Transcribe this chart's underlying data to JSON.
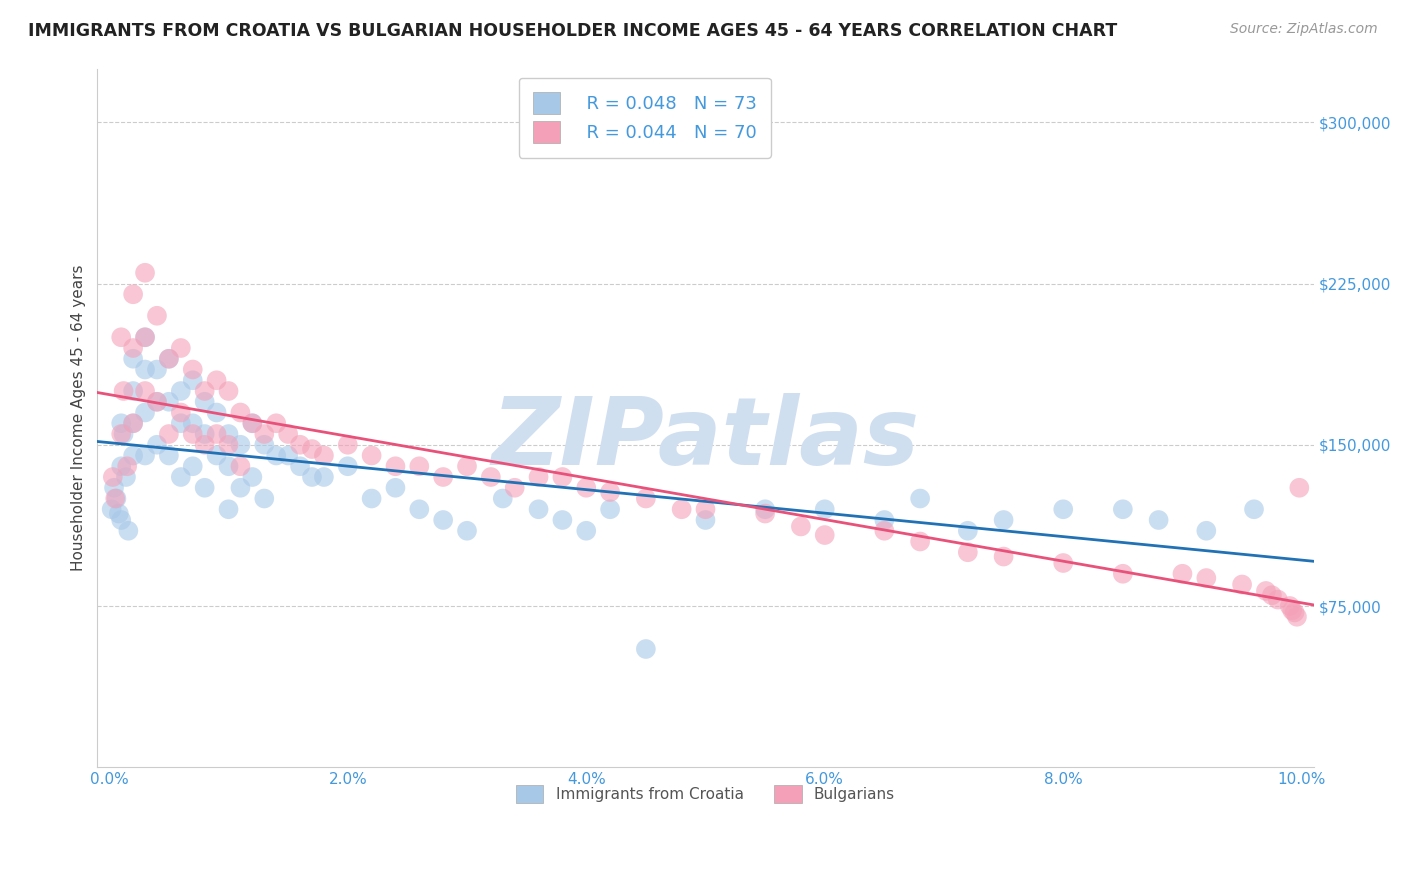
{
  "title": "IMMIGRANTS FROM CROATIA VS BULGARIAN HOUSEHOLDER INCOME AGES 45 - 64 YEARS CORRELATION CHART",
  "source": "Source: ZipAtlas.com",
  "ylabel": "Householder Income Ages 45 - 64 years",
  "xlim": [
    -0.001,
    0.101
  ],
  "ylim": [
    0,
    325000
  ],
  "yticks": [
    75000,
    150000,
    225000,
    300000
  ],
  "ytick_labels": [
    "$75,000",
    "$150,000",
    "$225,000",
    "$300,000"
  ],
  "xticks": [
    0.0,
    0.02,
    0.04,
    0.06,
    0.08,
    0.1
  ],
  "xtick_labels": [
    "0.0%",
    "2.0%",
    "4.0%",
    "6.0%",
    "8.0%",
    "10.0%"
  ],
  "series": [
    {
      "label": "Immigrants from Croatia",
      "color": "#a8c8e8",
      "edge_color": "#a8c8e8",
      "R": 0.048,
      "N": 73,
      "x": [
        0.0002,
        0.0004,
        0.0006,
        0.0008,
        0.001,
        0.001,
        0.001,
        0.0012,
        0.0014,
        0.0016,
        0.002,
        0.002,
        0.002,
        0.002,
        0.003,
        0.003,
        0.003,
        0.003,
        0.004,
        0.004,
        0.004,
        0.005,
        0.005,
        0.005,
        0.006,
        0.006,
        0.006,
        0.007,
        0.007,
        0.007,
        0.008,
        0.008,
        0.008,
        0.009,
        0.009,
        0.01,
        0.01,
        0.01,
        0.011,
        0.011,
        0.012,
        0.012,
        0.013,
        0.013,
        0.014,
        0.015,
        0.016,
        0.017,
        0.018,
        0.02,
        0.022,
        0.024,
        0.026,
        0.028,
        0.03,
        0.033,
        0.036,
        0.038,
        0.04,
        0.042,
        0.045,
        0.05,
        0.055,
        0.06,
        0.065,
        0.068,
        0.072,
        0.075,
        0.08,
        0.085,
        0.088,
        0.092,
        0.096
      ],
      "y": [
        120000,
        130000,
        125000,
        118000,
        160000,
        140000,
        115000,
        155000,
        135000,
        110000,
        190000,
        175000,
        160000,
        145000,
        200000,
        185000,
        165000,
        145000,
        185000,
        170000,
        150000,
        190000,
        170000,
        145000,
        175000,
        160000,
        135000,
        180000,
        160000,
        140000,
        170000,
        155000,
        130000,
        165000,
        145000,
        155000,
        140000,
        120000,
        150000,
        130000,
        160000,
        135000,
        150000,
        125000,
        145000,
        145000,
        140000,
        135000,
        135000,
        140000,
        125000,
        130000,
        120000,
        115000,
        110000,
        125000,
        120000,
        115000,
        110000,
        120000,
        55000,
        115000,
        120000,
        120000,
        115000,
        125000,
        110000,
        115000,
        120000,
        120000,
        115000,
        110000,
        120000
      ]
    },
    {
      "label": "Bulgarians",
      "color": "#f4a0b8",
      "edge_color": "#f4a0b8",
      "R": 0.044,
      "N": 70,
      "x": [
        0.0003,
        0.0005,
        0.001,
        0.001,
        0.0012,
        0.0015,
        0.002,
        0.002,
        0.002,
        0.003,
        0.003,
        0.003,
        0.004,
        0.004,
        0.005,
        0.005,
        0.006,
        0.006,
        0.007,
        0.007,
        0.008,
        0.008,
        0.009,
        0.009,
        0.01,
        0.01,
        0.011,
        0.011,
        0.012,
        0.013,
        0.014,
        0.015,
        0.016,
        0.017,
        0.018,
        0.02,
        0.022,
        0.024,
        0.026,
        0.028,
        0.03,
        0.032,
        0.034,
        0.036,
        0.038,
        0.04,
        0.042,
        0.045,
        0.048,
        0.05,
        0.055,
        0.058,
        0.06,
        0.065,
        0.068,
        0.072,
        0.075,
        0.08,
        0.085,
        0.09,
        0.092,
        0.095,
        0.097,
        0.0975,
        0.098,
        0.099,
        0.0992,
        0.0994,
        0.0996,
        0.0998
      ],
      "y": [
        135000,
        125000,
        200000,
        155000,
        175000,
        140000,
        220000,
        195000,
        160000,
        230000,
        200000,
        175000,
        210000,
        170000,
        190000,
        155000,
        195000,
        165000,
        185000,
        155000,
        175000,
        150000,
        180000,
        155000,
        175000,
        150000,
        165000,
        140000,
        160000,
        155000,
        160000,
        155000,
        150000,
        148000,
        145000,
        150000,
        145000,
        140000,
        140000,
        135000,
        140000,
        135000,
        130000,
        135000,
        135000,
        130000,
        128000,
        125000,
        120000,
        120000,
        118000,
        112000,
        108000,
        110000,
        105000,
        100000,
        98000,
        95000,
        90000,
        90000,
        88000,
        85000,
        82000,
        80000,
        78000,
        75000,
        73000,
        72000,
        70000,
        130000
      ]
    }
  ],
  "trendline_colors": [
    "#2171b5",
    "#e8527a"
  ],
  "watermark_text": "ZIPatlas",
  "watermark_color": "#d0dff0",
  "background_color": "#ffffff",
  "grid_color": "#cccccc",
  "title_fontsize": 12.5,
  "axis_label_fontsize": 11,
  "tick_fontsize": 11,
  "tick_color": "#4499dd",
  "legend_fontsize": 13,
  "source_color": "#999999"
}
